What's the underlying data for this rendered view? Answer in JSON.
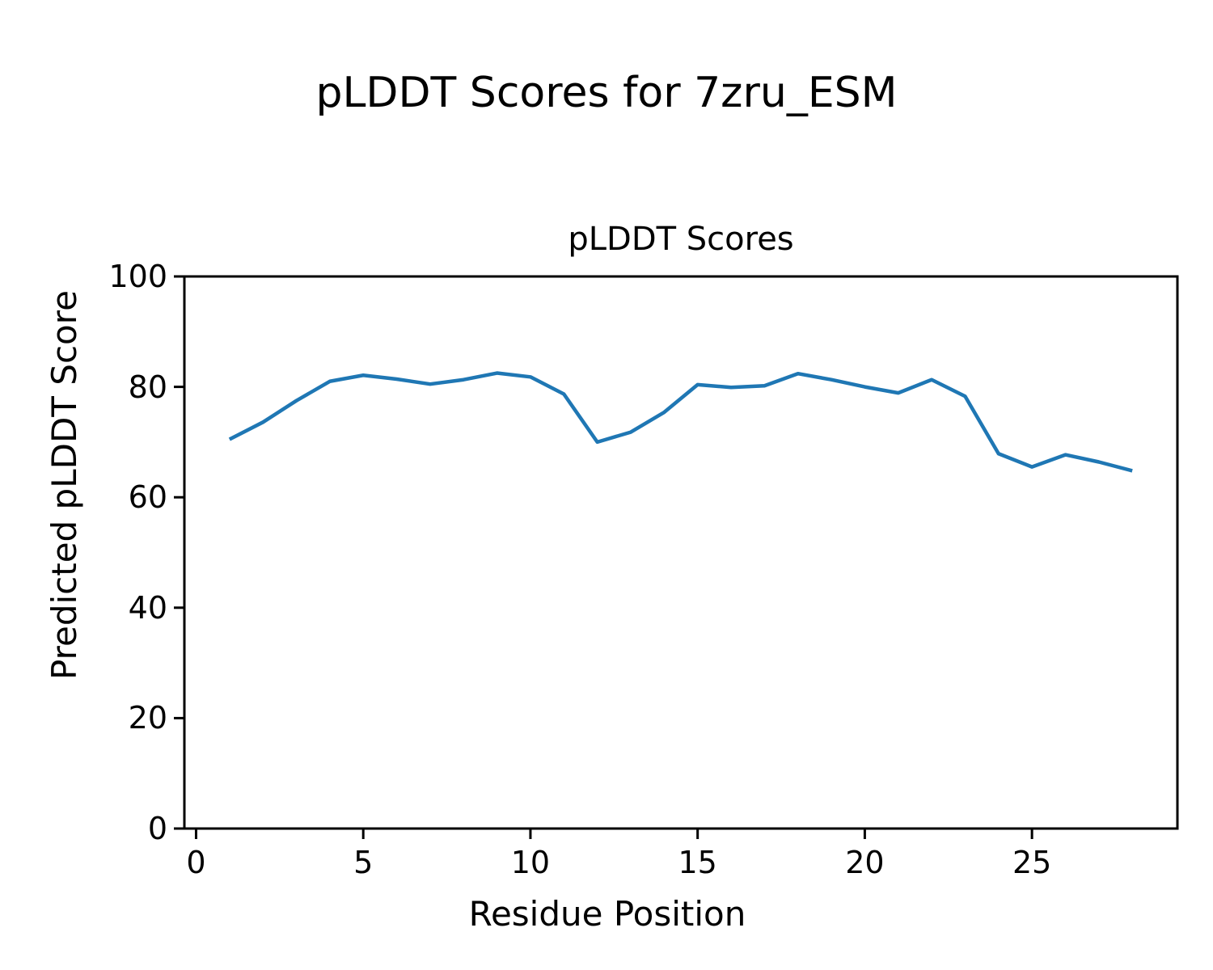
{
  "figure": {
    "suptitle": "pLDDT Scores for 7zru_ESM",
    "background_color": "#ffffff",
    "axis_color": "#000000"
  },
  "chart_data": {
    "type": "line",
    "title": "pLDDT Scores",
    "xlabel": "Residue Position",
    "ylabel": "Predicted pLDDT Score",
    "x": [
      1,
      2,
      3,
      4,
      5,
      6,
      7,
      8,
      9,
      10,
      11,
      12,
      13,
      14,
      15,
      16,
      17,
      18,
      19,
      20,
      21,
      22,
      23,
      24,
      25,
      26,
      27,
      28
    ],
    "y": [
      70.5,
      73.6,
      77.5,
      81.0,
      82.1,
      81.4,
      80.5,
      81.3,
      82.5,
      81.8,
      78.7,
      70.0,
      71.8,
      75.4,
      80.4,
      79.9,
      80.2,
      82.4,
      81.3,
      80.0,
      78.9,
      81.3,
      78.3,
      67.9,
      65.5,
      67.7,
      66.4,
      64.8
    ],
    "xlim": [
      -0.35,
      29.35
    ],
    "ylim": [
      0,
      100
    ],
    "xticks": [
      0,
      5,
      10,
      15,
      20,
      25
    ],
    "yticks": [
      0,
      20,
      40,
      60,
      80,
      100
    ],
    "grid": false,
    "legend": "none",
    "line_color": "#1f77b4",
    "line_width": 4.5
  }
}
